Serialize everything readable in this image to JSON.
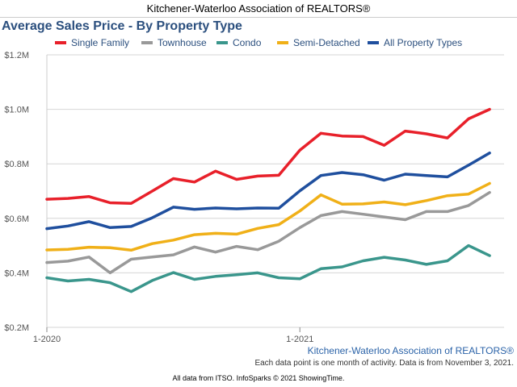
{
  "header": {
    "association": "Kitchener-Waterloo Association of REALTORS®"
  },
  "chart_data": {
    "type": "line",
    "title": "Average Sales Price - By Property Type",
    "x_tick_labels": [
      "1-2020",
      "1-2021"
    ],
    "x_tick_index": [
      0,
      12
    ],
    "y_ticks": [
      200000,
      400000,
      600000,
      800000,
      1000000,
      1200000
    ],
    "y_tick_labels": [
      "$0.2M",
      "$0.4M",
      "$0.6M",
      "$0.8M",
      "$1.0M",
      "$1.2M"
    ],
    "ylim": [
      200000,
      1200000
    ],
    "grid": "horizontal",
    "legend_position": "top",
    "series": [
      {
        "name": "Single Family",
        "color": "#e8202a",
        "values": [
          670000,
          673000,
          680000,
          657000,
          655000,
          700000,
          746000,
          733000,
          773000,
          743000,
          755000,
          758000,
          850000,
          912000,
          902000,
          900000,
          868000,
          920000,
          910000,
          895000,
          965000,
          1000000
        ]
      },
      {
        "name": "Townhouse",
        "color": "#999999",
        "values": [
          438000,
          443000,
          458000,
          400000,
          450000,
          458000,
          466000,
          495000,
          476000,
          497000,
          485000,
          516000,
          566000,
          610000,
          625000,
          615000,
          605000,
          595000,
          625000,
          625000,
          647000,
          695000
        ]
      },
      {
        "name": "Condo",
        "color": "#3a968c",
        "values": [
          382000,
          370000,
          376000,
          364000,
          331000,
          372000,
          401000,
          376000,
          387000,
          393000,
          400000,
          382000,
          378000,
          415000,
          422000,
          444000,
          457000,
          447000,
          431000,
          444000,
          500000,
          463000
        ]
      },
      {
        "name": "Semi-Detached",
        "color": "#f0b018",
        "values": [
          484000,
          486000,
          494000,
          492000,
          483000,
          507000,
          520000,
          540000,
          545000,
          542000,
          563000,
          577000,
          627000,
          686000,
          652000,
          653000,
          660000,
          650000,
          665000,
          683000,
          689000,
          728000
        ]
      },
      {
        "name": "All Property Types",
        "color": "#1f4f9e",
        "values": [
          562000,
          572000,
          588000,
          566000,
          570000,
          602000,
          641000,
          633000,
          638000,
          635000,
          638000,
          637000,
          701000,
          757000,
          768000,
          760000,
          740000,
          762000,
          757000,
          752000,
          795000,
          840000
        ]
      }
    ]
  },
  "footer": {
    "watermark": "Kitchener-Waterloo Association of REALTORS®",
    "note": "Each data point is one month of activity. Data is from November 3, 2021.",
    "credit": "All data from ITSO. InfoSparks © 2021 ShowingTime."
  }
}
